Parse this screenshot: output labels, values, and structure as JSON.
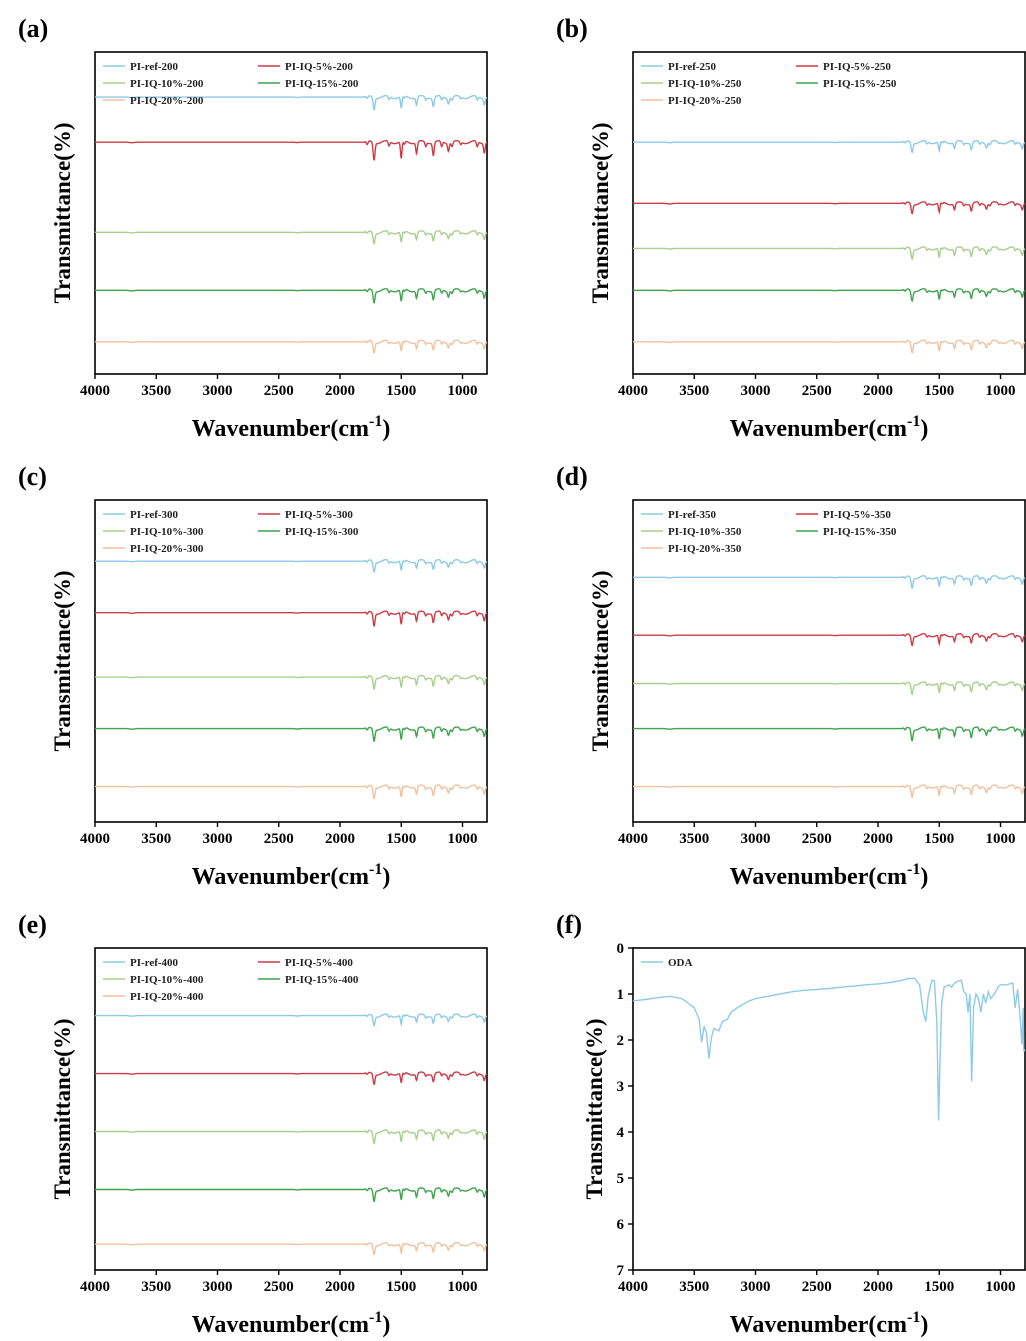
{
  "colors": {
    "ref": "#8ecae6",
    "iq5": "#cb3c47",
    "iq10": "#a8cf8e",
    "iq15": "#3fa34d",
    "iq20": "#f0c29e",
    "oda": "#8ecae6"
  },
  "chart_data": [
    {
      "panel": "(a)",
      "type": "line",
      "xlabel": "Wavenumber(cm",
      "xlabel_sup": "-1",
      "ylabel": "Transmittance(%)",
      "xlim": [
        4000,
        800
      ],
      "x_ticks": [
        4000,
        3500,
        3000,
        2500,
        2000,
        1500,
        1000
      ],
      "y_ticks": [],
      "grid": false,
      "legend_position": "top-left",
      "series": [
        {
          "name": "PI-ref-200",
          "color": "ref",
          "baseline": 0.14,
          "depth": 1.0
        },
        {
          "name": "PI-IQ-5%-200",
          "color": "iq5",
          "baseline": 0.28,
          "depth": 1.45
        },
        {
          "name": "PI-IQ-10%-200",
          "color": "iq10",
          "baseline": 0.56,
          "depth": 0.9
        },
        {
          "name": "PI-IQ-15%-200",
          "color": "iq15",
          "baseline": 0.74,
          "depth": 1.0
        },
        {
          "name": "PI-IQ-20%-200",
          "color": "iq20",
          "baseline": 0.9,
          "depth": 0.85
        }
      ]
    },
    {
      "panel": "(b)",
      "type": "line",
      "xlabel": "Wavenumber(cm",
      "xlabel_sup": "-1",
      "ylabel": "Transmittance(%)",
      "xlim": [
        4000,
        800
      ],
      "x_ticks": [
        4000,
        3500,
        3000,
        2500,
        2000,
        1500,
        1000
      ],
      "y_ticks": [],
      "grid": false,
      "legend_position": "top-left",
      "series": [
        {
          "name": "PI-ref-250",
          "color": "ref",
          "baseline": 0.28,
          "depth": 0.8
        },
        {
          "name": "PI-IQ-5%-250",
          "color": "iq5",
          "baseline": 0.47,
          "depth": 0.8
        },
        {
          "name": "PI-IQ-10%-250",
          "color": "iq10",
          "baseline": 0.61,
          "depth": 0.85
        },
        {
          "name": "PI-IQ-15%-250",
          "color": "iq15",
          "baseline": 0.74,
          "depth": 0.85
        },
        {
          "name": "PI-IQ-20%-250",
          "color": "iq20",
          "baseline": 0.9,
          "depth": 0.85
        }
      ]
    },
    {
      "panel": "(c)",
      "type": "line",
      "xlabel": "Wavenumber(cm",
      "xlabel_sup": "-1",
      "ylabel": "Transmittance(%)",
      "xlim": [
        4000,
        800
      ],
      "x_ticks": [
        4000,
        3500,
        3000,
        2500,
        2000,
        1500,
        1000
      ],
      "y_ticks": [],
      "grid": false,
      "legend_position": "top-left",
      "series": [
        {
          "name": "PI-ref-300",
          "color": "ref",
          "baseline": 0.19,
          "depth": 0.85
        },
        {
          "name": "PI-IQ-5%-300",
          "color": "iq5",
          "baseline": 0.35,
          "depth": 1.05
        },
        {
          "name": "PI-IQ-10%-300",
          "color": "iq10",
          "baseline": 0.55,
          "depth": 0.95
        },
        {
          "name": "PI-IQ-15%-300",
          "color": "iq15",
          "baseline": 0.71,
          "depth": 1.0
        },
        {
          "name": "PI-IQ-20%-300",
          "color": "iq20",
          "baseline": 0.89,
          "depth": 0.95
        }
      ]
    },
    {
      "panel": "(d)",
      "type": "line",
      "xlabel": "Wavenumber(cm",
      "xlabel_sup": "-1",
      "ylabel": "Transmittance(%)",
      "xlim": [
        4000,
        800
      ],
      "x_ticks": [
        4000,
        3500,
        3000,
        2500,
        2000,
        1500,
        1000
      ],
      "y_ticks": [],
      "grid": false,
      "legend_position": "top-left",
      "series": [
        {
          "name": "PI-ref-350",
          "color": "ref",
          "baseline": 0.24,
          "depth": 0.85
        },
        {
          "name": "PI-IQ-5%-350",
          "color": "iq5",
          "baseline": 0.42,
          "depth": 0.8
        },
        {
          "name": "PI-IQ-10%-350",
          "color": "iq10",
          "baseline": 0.57,
          "depth": 0.85
        },
        {
          "name": "PI-IQ-15%-350",
          "color": "iq15",
          "baseline": 0.71,
          "depth": 0.95
        },
        {
          "name": "PI-IQ-20%-350",
          "color": "iq20",
          "baseline": 0.89,
          "depth": 0.85
        }
      ]
    },
    {
      "panel": "(e)",
      "type": "line",
      "xlabel": "Wavenumber(cm",
      "xlabel_sup": "-1",
      "ylabel": "Transmittance(%)",
      "xlim": [
        4000,
        800
      ],
      "x_ticks": [
        4000,
        3500,
        3000,
        2500,
        2000,
        1500,
        1000
      ],
      "y_ticks": [],
      "grid": false,
      "legend_position": "top-left",
      "series": [
        {
          "name": "PI-ref-400",
          "color": "ref",
          "baseline": 0.21,
          "depth": 0.8
        },
        {
          "name": "PI-IQ-5%-400",
          "color": "iq5",
          "baseline": 0.39,
          "depth": 0.85
        },
        {
          "name": "PI-IQ-10%-400",
          "color": "iq10",
          "baseline": 0.57,
          "depth": 0.95
        },
        {
          "name": "PI-IQ-15%-400",
          "color": "iq15",
          "baseline": 0.75,
          "depth": 0.95
        },
        {
          "name": "PI-IQ-20%-400",
          "color": "iq20",
          "baseline": 0.92,
          "depth": 0.8
        }
      ]
    },
    {
      "panel": "(f)",
      "type": "line",
      "xlabel": "Wavenumber(cm",
      "xlabel_sup": "-1",
      "ylabel": "Transmittance(%)",
      "xlim": [
        4000,
        800
      ],
      "ylim": [
        0,
        7
      ],
      "y_inverted": true,
      "x_ticks": [
        4000,
        3500,
        3000,
        2500,
        2000,
        1500,
        1000
      ],
      "y_ticks": [
        0,
        1,
        2,
        3,
        4,
        5,
        6,
        7
      ],
      "grid": false,
      "legend_position": "top-left",
      "series": [
        {
          "name": "ODA",
          "color": "oda",
          "points": [
            [
              4000,
              1.15
            ],
            [
              3900,
              1.12
            ],
            [
              3800,
              1.08
            ],
            [
              3700,
              1.05
            ],
            [
              3600,
              1.1
            ],
            [
              3500,
              1.3
            ],
            [
              3460,
              1.55
            ],
            [
              3440,
              2.05
            ],
            [
              3420,
              1.7
            ],
            [
              3400,
              1.85
            ],
            [
              3380,
              2.4
            ],
            [
              3360,
              1.95
            ],
            [
              3340,
              1.75
            ],
            [
              3300,
              1.8
            ],
            [
              3270,
              1.6
            ],
            [
              3230,
              1.55
            ],
            [
              3200,
              1.4
            ],
            [
              3150,
              1.3
            ],
            [
              3100,
              1.22
            ],
            [
              3050,
              1.15
            ],
            [
              3000,
              1.1
            ],
            [
              2900,
              1.05
            ],
            [
              2800,
              1.0
            ],
            [
              2700,
              0.95
            ],
            [
              2600,
              0.92
            ],
            [
              2500,
              0.9
            ],
            [
              2400,
              0.88
            ],
            [
              2300,
              0.85
            ],
            [
              2200,
              0.83
            ],
            [
              2100,
              0.8
            ],
            [
              2000,
              0.78
            ],
            [
              1900,
              0.75
            ],
            [
              1800,
              0.7
            ],
            [
              1750,
              0.66
            ],
            [
              1700,
              0.66
            ],
            [
              1660,
              0.8
            ],
            [
              1630,
              1.4
            ],
            [
              1610,
              1.6
            ],
            [
              1590,
              1.05
            ],
            [
              1560,
              0.7
            ],
            [
              1540,
              0.72
            ],
            [
              1520,
              1.6
            ],
            [
              1505,
              3.75
            ],
            [
              1495,
              2.5
            ],
            [
              1480,
              1.2
            ],
            [
              1460,
              0.85
            ],
            [
              1420,
              0.8
            ],
            [
              1400,
              0.85
            ],
            [
              1380,
              0.78
            ],
            [
              1350,
              0.72
            ],
            [
              1320,
              0.7
            ],
            [
              1300,
              0.95
            ],
            [
              1280,
              1.0
            ],
            [
              1265,
              1.4
            ],
            [
              1250,
              1.0
            ],
            [
              1235,
              2.9
            ],
            [
              1220,
              1.3
            ],
            [
              1200,
              1.0
            ],
            [
              1180,
              1.1
            ],
            [
              1160,
              1.4
            ],
            [
              1140,
              1.0
            ],
            [
              1120,
              1.2
            ],
            [
              1100,
              0.95
            ],
            [
              1080,
              1.1
            ],
            [
              1050,
              1.0
            ],
            [
              1020,
              0.85
            ],
            [
              1000,
              0.8
            ],
            [
              950,
              0.8
            ],
            [
              900,
              0.76
            ],
            [
              880,
              1.3
            ],
            [
              860,
              0.9
            ],
            [
              840,
              1.5
            ],
            [
              825,
              2.1
            ],
            [
              815,
              1.3
            ],
            [
              810,
              2.25
            ],
            [
              800,
              2.2
            ]
          ]
        }
      ]
    }
  ]
}
